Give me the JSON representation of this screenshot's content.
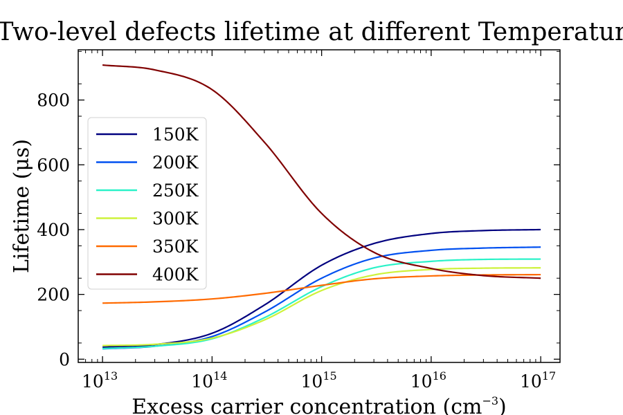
{
  "chart_data": {
    "type": "line",
    "title": "Two-level defects lifetime at different Temperature",
    "xlabel": "Excess carrier concentration",
    "xlabel_unit": "(cm",
    "xlabel_unit_exp": "−3",
    "xlabel_unit_close": ")",
    "ylabel": "Lifetime (μs)",
    "xscale": "log",
    "xlim": [
      6000000000000.0,
      1.5e+17
    ],
    "ylim": [
      -10,
      955
    ],
    "x_ticks": [
      {
        "value": 10000000000000.0,
        "base": "10",
        "exp": "13"
      },
      {
        "value": 100000000000000.0,
        "base": "10",
        "exp": "14"
      },
      {
        "value": 1000000000000000.0,
        "base": "10",
        "exp": "15"
      },
      {
        "value": 1e+16,
        "base": "10",
        "exp": "16"
      },
      {
        "value": 1e+17,
        "base": "10",
        "exp": "17"
      }
    ],
    "y_ticks": [
      {
        "value": 0,
        "label": "0"
      },
      {
        "value": 200,
        "label": "200"
      },
      {
        "value": 400,
        "label": "400"
      },
      {
        "value": 600,
        "label": "600"
      },
      {
        "value": 800,
        "label": "800"
      }
    ],
    "legend_position": "center-left",
    "grid": false,
    "x": [
      10000000000000.0,
      30000000000000.0,
      100000000000000.0,
      300000000000000.0,
      1000000000000000.0,
      3000000000000000.0,
      1e+16,
      3e+16,
      1e+17
    ],
    "series": [
      {
        "name": "150K",
        "color": "#00007f",
        "values": [
          37,
          45,
          80,
          167,
          290,
          357,
          388,
          397,
          400
        ]
      },
      {
        "name": "200K",
        "color": "#0050f0",
        "values": [
          32,
          40,
          70,
          145,
          250,
          312,
          336,
          343,
          346
        ]
      },
      {
        "name": "250K",
        "color": "#2af2c8",
        "values": [
          33,
          40,
          63,
          128,
          224,
          282,
          302,
          308,
          309
        ]
      },
      {
        "name": "300K",
        "color": "#cdf23a",
        "values": [
          42,
          46,
          65,
          121,
          212,
          260,
          277,
          281,
          282
        ]
      },
      {
        "name": "350K",
        "color": "#ff6a00",
        "values": [
          173,
          177,
          186,
          203,
          228,
          248,
          257,
          260,
          261
        ]
      },
      {
        "name": "400K",
        "color": "#800000",
        "values": [
          908,
          893,
          832,
          670,
          450,
          330,
          280,
          258,
          250
        ]
      }
    ]
  }
}
